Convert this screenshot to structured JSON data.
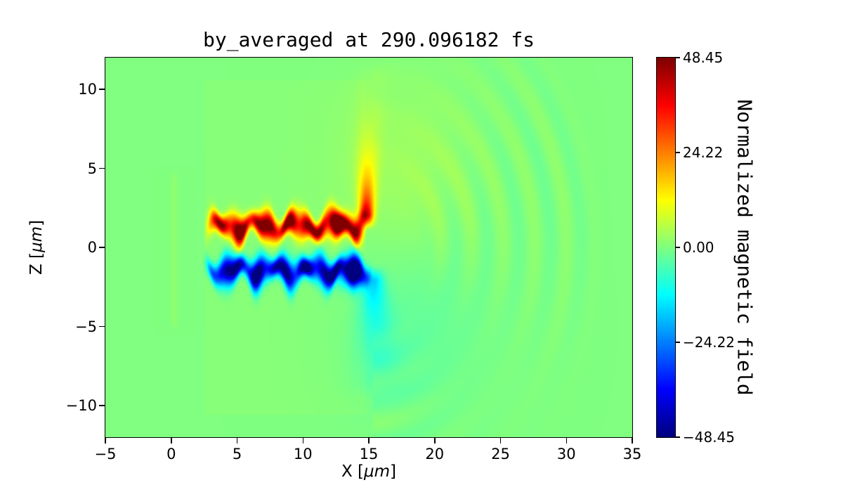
{
  "chart_data": {
    "type": "heatmap",
    "title": "by_averaged at 290.096182 fs",
    "xlabel": "X [μm]",
    "ylabel": "Z [μm]",
    "xlabel_parts": {
      "pre": "X [",
      "math": "μm",
      "post": "]"
    },
    "ylabel_parts": {
      "pre": "Z [",
      "math": "μm",
      "post": "]"
    },
    "xlim": [
      -5,
      35
    ],
    "ylim": [
      -12,
      12
    ],
    "xticks": [
      -5,
      0,
      5,
      10,
      15,
      20,
      25,
      30,
      35
    ],
    "xtick_labels": [
      "−5",
      "0",
      "5",
      "10",
      "15",
      "20",
      "25",
      "30",
      "35"
    ],
    "yticks": [
      -10,
      -5,
      0,
      5,
      10
    ],
    "ytick_labels": [
      "−10",
      "−5",
      "0",
      "5",
      "10"
    ],
    "grid": false,
    "colormap": "jet",
    "background_value": 0.0,
    "colorbar": {
      "label": "Normalized magnetic field",
      "vmin": -48.45,
      "vmax": 48.45,
      "ticks": [
        48.45,
        24.22,
        0.0,
        -24.22,
        -48.45
      ],
      "tick_labels": [
        "48.45",
        "24.22",
        "0.00",
        "−24.22",
        "−48.45"
      ]
    },
    "features": [
      {
        "kind": "box",
        "name": "target-region",
        "x_start": 2.5,
        "x_end": 14.8,
        "z_start": -10.6,
        "z_end": 10.6,
        "amplitude": 0.7
      },
      {
        "kind": "filament",
        "name": "positive-filament",
        "z0": 1.35,
        "x_start": 3.1,
        "x_end": 14.5,
        "sigma_z": 0.7,
        "amplitude": 47,
        "wave_amp": 0.3,
        "wave_freq": 2.1,
        "phase": 0.6
      },
      {
        "kind": "filament",
        "name": "negative-filament",
        "z0": -1.45,
        "x_start": 3.1,
        "x_end": 14.9,
        "sigma_z": 0.75,
        "amplitude": -47,
        "wave_amp": 0.28,
        "wave_freq": 2.3,
        "phase": 2.4
      },
      {
        "kind": "haze",
        "name": "positive-vortex",
        "x0": 13.1,
        "z0": 1.55,
        "rx": 0.9,
        "rz": 0.7,
        "amplitude": 20
      },
      {
        "kind": "haze",
        "name": "negative-vortex",
        "x0": 13.4,
        "z0": -1.75,
        "rx": 0.95,
        "rz": 0.8,
        "amplitude": -20
      },
      {
        "kind": "plume",
        "name": "upward-plume",
        "x0": 14.85,
        "z_start": 2.0,
        "z_end": 11.2,
        "sigma_x": 0.5,
        "spread": 1.6,
        "curve": 0.55,
        "amplitude": 44,
        "decay": 2.3
      },
      {
        "kind": "plume",
        "name": "downward-plume",
        "x0": 15.35,
        "z_start": -2.0,
        "z_end": -9.2,
        "sigma_x": 0.75,
        "spread": 1.9,
        "curve": 0.5,
        "amplitude": -17,
        "decay": 3.2
      },
      {
        "kind": "haze",
        "name": "upper-right-haze",
        "x0": 18.2,
        "z0": 4.8,
        "rx": 5.0,
        "rz": 5.8,
        "amplitude": 3.2
      },
      {
        "kind": "haze",
        "name": "lower-right-haze",
        "x0": 18.4,
        "z0": -4.9,
        "rx": 5.2,
        "rz": 5.4,
        "amplitude": -2.8
      },
      {
        "kind": "ripples",
        "name": "wavefronts",
        "cx": 15.0,
        "cz": 0.0,
        "r_min": 3.5,
        "r_max": 18.5,
        "wavelength": 2.4,
        "amplitude": 1.7
      },
      {
        "kind": "plume",
        "name": "front-line",
        "x0": 0.25,
        "z_start": -4.6,
        "z_end": 4.6,
        "sigma_x": 0.28,
        "spread": 0,
        "curve": 0,
        "amplitude": 1.6,
        "decay": 999
      }
    ]
  }
}
